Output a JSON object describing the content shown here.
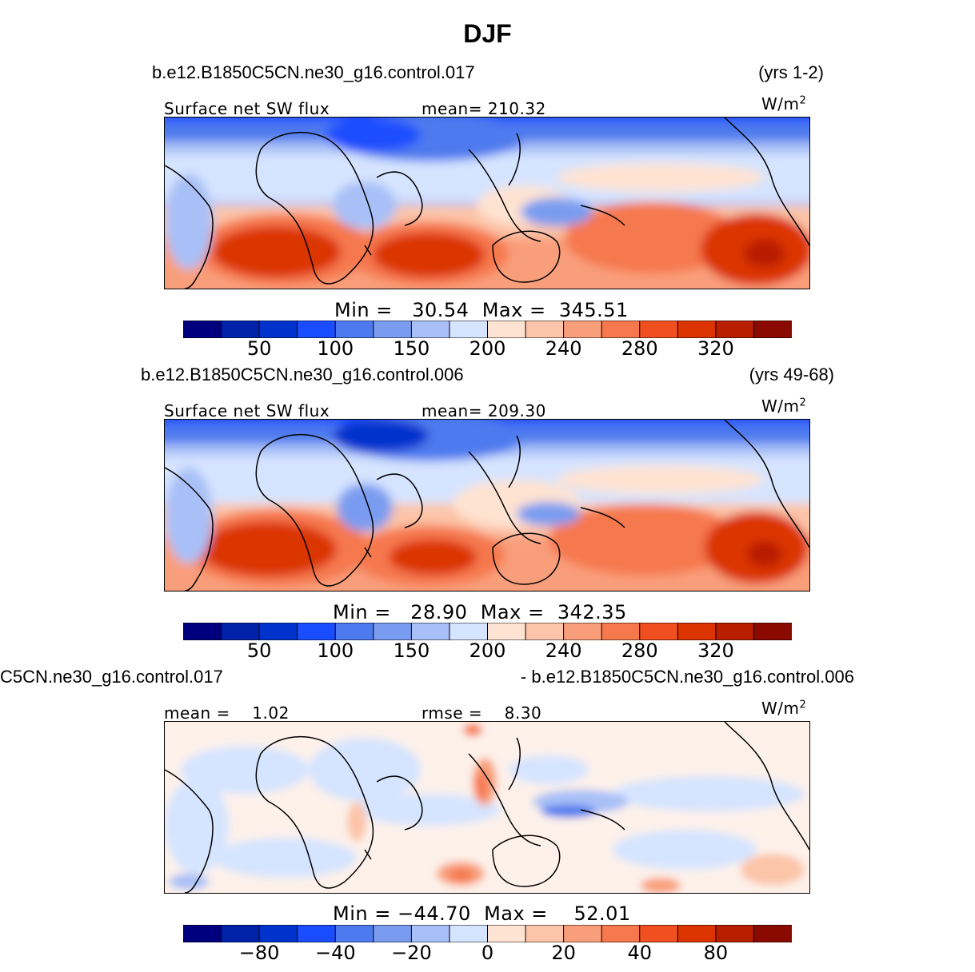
{
  "title": "DJF",
  "units_label": "W/m",
  "units_exp": "2",
  "colors": {
    "blues": [
      "#00007f",
      "#0022a8",
      "#0033cc",
      "#1a4dff",
      "#4d7aee",
      "#7a9cf0",
      "#a8c0f7",
      "#d5e4ff"
    ],
    "reds": [
      "#ffe3d2",
      "#fcc4a8",
      "#f99e7a",
      "#f6784d",
      "#f04f1f",
      "#db3400",
      "#b81f00",
      "#8a0a00"
    ],
    "neutral": "#ffffff"
  },
  "chart_data": [
    {
      "type": "heatmap",
      "case": "b.e12.B1850C5CN.ne30_g16.control.017",
      "years": "(yrs 1-2)",
      "variable": "Surface net SW flux",
      "stat_label": "mean=",
      "stat_value": "210.32",
      "min_label": "Min  =",
      "min_value": "30.54",
      "max_label": "Max  =",
      "max_value": "345.51",
      "colorbar_ticks": [
        "50",
        "100",
        "150",
        "200",
        "240",
        "280",
        "320"
      ],
      "colorbar_bins": 16
    },
    {
      "type": "heatmap",
      "case": "b.e12.B1850C5CN.ne30_g16.control.006",
      "years": "(yrs 49-68)",
      "variable": "Surface net SW flux",
      "stat_label": "mean=",
      "stat_value": "209.30",
      "min_label": "Min  =",
      "min_value": "28.90",
      "max_label": "Max  =",
      "max_value": "342.35",
      "colorbar_ticks": [
        "50",
        "100",
        "150",
        "200",
        "240",
        "280",
        "320"
      ],
      "colorbar_bins": 16
    },
    {
      "type": "heatmap",
      "case_left": "C5CN.ne30_g16.control.017",
      "case_right": "- b.e12.B1850C5CN.ne30_g16.control.006",
      "mean_label": "mean =",
      "mean_value": "1.02",
      "rmse_label": "rmse =",
      "rmse_value": "8.30",
      "min_label": "Min  =",
      "min_value": "−44.70",
      "max_label": "Max  =",
      "max_value": "52.01",
      "colorbar_ticks": [
        "−80",
        "−40",
        "−20",
        "0",
        "20",
        "40",
        "80"
      ],
      "colorbar_bins": 16
    }
  ]
}
